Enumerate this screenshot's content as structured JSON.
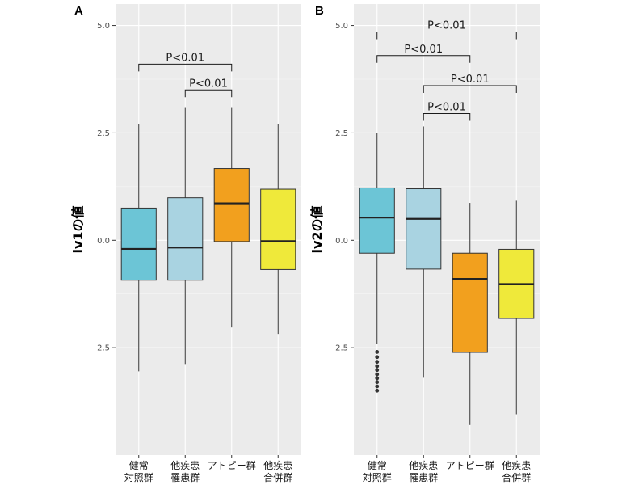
{
  "chart_data": [
    {
      "panel": "A",
      "type": "box",
      "ylabel": "lv1の値",
      "ylim": [
        -5.0,
        5.5
      ],
      "yticks": [
        "5.0",
        "2.5",
        "0.0",
        "-2.5"
      ],
      "ytick_values": [
        5.0,
        2.5,
        0.0,
        -2.5
      ],
      "categories": [
        {
          "lines": [
            "健常",
            "対照群"
          ]
        },
        {
          "lines": [
            "他疾患",
            "罹患群"
          ]
        },
        {
          "lines": [
            "アトピー群"
          ]
        },
        {
          "lines": [
            "他疾患",
            "合併群"
          ]
        }
      ],
      "colors": [
        "#6cc5d6",
        "#a9d3e1",
        "#f2a01e",
        "#efe93a"
      ],
      "boxes": [
        {
          "min": -3.05,
          "q1": -0.93,
          "median": -0.2,
          "q3": 0.75,
          "max": 2.7,
          "outliers": []
        },
        {
          "min": -2.88,
          "q1": -0.93,
          "median": -0.17,
          "q3": 0.99,
          "max": 3.1,
          "outliers": []
        },
        {
          "min": -2.03,
          "q1": -0.03,
          "median": 0.86,
          "q3": 1.67,
          "max": 3.1,
          "outliers": []
        },
        {
          "min": -2.18,
          "q1": -0.68,
          "median": -0.02,
          "q3": 1.19,
          "max": 2.7,
          "outliers": []
        }
      ],
      "significance": [
        {
          "from": 0,
          "to": 2,
          "y": 4.1,
          "label": "P<0.01"
        },
        {
          "from": 1,
          "to": 2,
          "y": 3.5,
          "label": "P<0.01"
        }
      ]
    },
    {
      "panel": "B",
      "type": "box",
      "ylabel": "lv2の値",
      "ylim": [
        -5.0,
        5.5
      ],
      "yticks": [
        "5.0",
        "2.5",
        "0.0",
        "-2.5"
      ],
      "ytick_values": [
        5.0,
        2.5,
        0.0,
        -2.5
      ],
      "categories": [
        {
          "lines": [
            "健常",
            "対照群"
          ]
        },
        {
          "lines": [
            "他疾患",
            "罹患群"
          ]
        },
        {
          "lines": [
            "アトピー群"
          ]
        },
        {
          "lines": [
            "他疾患",
            "合併群"
          ]
        }
      ],
      "colors": [
        "#6cc5d6",
        "#a9d3e1",
        "#f2a01e",
        "#efe93a"
      ],
      "boxes": [
        {
          "min": -2.42,
          "q1": -0.3,
          "median": 0.53,
          "q3": 1.22,
          "max": 2.5,
          "outliers": [
            -2.6,
            -2.72,
            -2.83,
            -2.93,
            -3.02,
            -3.12,
            -3.21,
            -3.3,
            -3.4,
            -3.5
          ]
        },
        {
          "min": -3.2,
          "q1": -0.67,
          "median": 0.5,
          "q3": 1.2,
          "max": 2.65,
          "outliers": []
        },
        {
          "min": -4.3,
          "q1": -2.61,
          "median": -0.9,
          "q3": -0.3,
          "max": 0.87,
          "outliers": []
        },
        {
          "min": -4.05,
          "q1": -1.82,
          "median": -1.02,
          "q3": -0.21,
          "max": 0.92,
          "outliers": []
        }
      ],
      "significance": [
        {
          "from": 0,
          "to": 3,
          "y": 4.85,
          "label": "P<0.01"
        },
        {
          "from": 0,
          "to": 2,
          "y": 4.3,
          "label": "P<0.01"
        },
        {
          "from": 1,
          "to": 3,
          "y": 3.6,
          "label": "P<0.01"
        },
        {
          "from": 1,
          "to": 2,
          "y": 2.95,
          "label": "P<0.01"
        }
      ]
    }
  ]
}
